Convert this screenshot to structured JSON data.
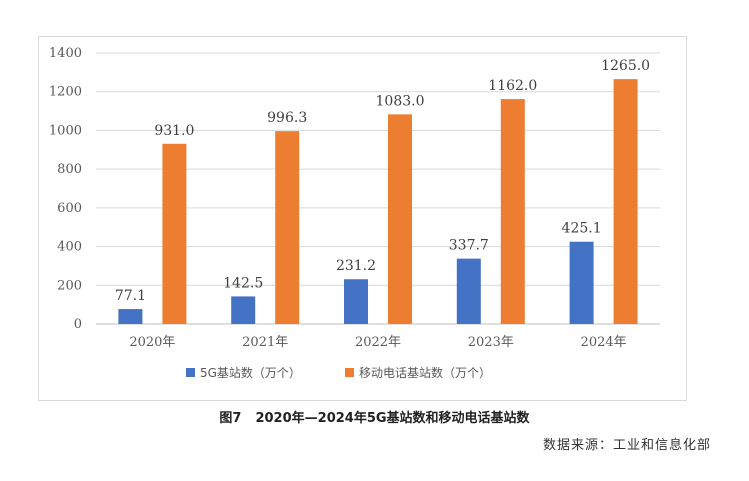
{
  "chart_data": {
    "type": "bar",
    "categories": [
      "2020年",
      "2021年",
      "2022年",
      "2023年",
      "2024年"
    ],
    "series": [
      {
        "name": "5G基站数（万个）",
        "color": "#4472c4",
        "values": [
          77.1,
          142.5,
          231.2,
          337.7,
          425.1
        ],
        "labels": [
          "77.1",
          "142.5",
          "231.2",
          "337.7",
          "425.1"
        ]
      },
      {
        "name": "移动电话基站数（万个）",
        "color": "#ed7d31",
        "values": [
          931.0,
          996.3,
          1083.0,
          1162.0,
          1265.0
        ],
        "labels": [
          "931.0",
          "996.3",
          "1083.0",
          "1162.0",
          "1265.0"
        ]
      }
    ],
    "ylim": [
      0,
      1400
    ],
    "yticks": [
      "0",
      "200",
      "400",
      "600",
      "800",
      "1000",
      "1200",
      "1400"
    ],
    "grid": true,
    "legend_position": "bottom"
  },
  "caption": {
    "figure_label": "图7",
    "title": "2020年—2024年5G基站数和移动电话基站数"
  },
  "source": "数据来源：工业和信息化部"
}
